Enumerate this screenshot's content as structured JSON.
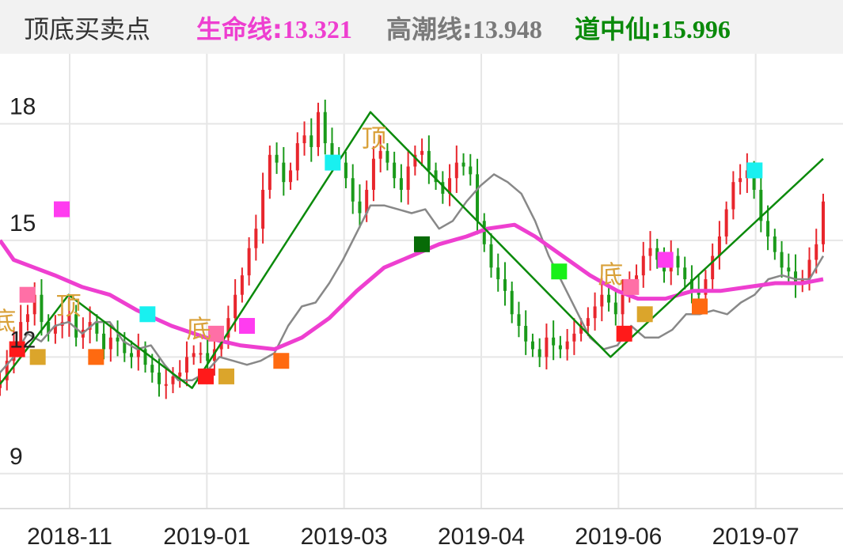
{
  "header": {
    "title": "顶底买卖点",
    "indicators": [
      {
        "label": "生命线:",
        "value": "13.321",
        "color": "#ee3fd0"
      },
      {
        "label": "高潮线:",
        "value": "13.948",
        "color": "#7a7a7a"
      },
      {
        "label": "道中仙:",
        "value": "15.996",
        "color": "#0b8a0b"
      }
    ]
  },
  "chart_data": {
    "type": "candlestick",
    "y_range": [
      8.1,
      19.8
    ],
    "y_ticks": [
      {
        "value": 18,
        "label": "18"
      },
      {
        "value": 15,
        "label": "15"
      },
      {
        "value": 12,
        "label": "12"
      },
      {
        "value": 9,
        "label": "9"
      }
    ],
    "x_range": [
      0,
      120
    ],
    "x_ticks": [
      {
        "x": 10,
        "label": "2018-11"
      },
      {
        "x": 30,
        "label": "2019-01"
      },
      {
        "x": 50,
        "label": "2019-03"
      },
      {
        "x": 70,
        "label": "2019-04"
      },
      {
        "x": 90,
        "label": "2019-06"
      },
      {
        "x": 110,
        "label": "2019-07"
      }
    ],
    "colors": {
      "up": "#e8262d",
      "down": "#1a9a1a",
      "life_line": "#ee3fd0",
      "climax_line": "#888888",
      "zigzag": "#0b8a0b",
      "grid": "#e6e6e6"
    },
    "life_line": [
      [
        0,
        15.0
      ],
      [
        2,
        14.5
      ],
      [
        5,
        14.3
      ],
      [
        8,
        14.1
      ],
      [
        12,
        13.8
      ],
      [
        16,
        13.6
      ],
      [
        20,
        13.2
      ],
      [
        25,
        12.8
      ],
      [
        30,
        12.5
      ],
      [
        35,
        12.3
      ],
      [
        40,
        12.2
      ],
      [
        44,
        12.5
      ],
      [
        48,
        13.0
      ],
      [
        52,
        13.7
      ],
      [
        56,
        14.3
      ],
      [
        60,
        14.6
      ],
      [
        64,
        14.9
      ],
      [
        68,
        15.1
      ],
      [
        71,
        15.3
      ],
      [
        75,
        15.4
      ],
      [
        78,
        15.1
      ],
      [
        82,
        14.6
      ],
      [
        86,
        14.1
      ],
      [
        90,
        13.7
      ],
      [
        93,
        13.5
      ],
      [
        97,
        13.5
      ],
      [
        101,
        13.7
      ],
      [
        105,
        13.7
      ],
      [
        109,
        13.8
      ],
      [
        113,
        13.9
      ],
      [
        117,
        13.9
      ],
      [
        120,
        14.0
      ]
    ],
    "climax_line": [
      [
        0,
        11.6
      ],
      [
        2,
        12.0
      ],
      [
        4,
        12.6
      ],
      [
        6,
        12.4
      ],
      [
        8,
        12.8
      ],
      [
        10,
        12.9
      ],
      [
        12,
        12.6
      ],
      [
        14,
        12.9
      ],
      [
        16,
        12.9
      ],
      [
        18,
        12.4
      ],
      [
        20,
        12.2
      ],
      [
        22,
        12.3
      ],
      [
        24,
        11.8
      ],
      [
        26,
        11.4
      ],
      [
        28,
        11.4
      ],
      [
        30,
        11.6
      ],
      [
        32,
        12.0
      ],
      [
        34,
        11.9
      ],
      [
        36,
        11.8
      ],
      [
        38,
        11.9
      ],
      [
        40,
        12.1
      ],
      [
        42,
        12.8
      ],
      [
        44,
        13.3
      ],
      [
        46,
        13.4
      ],
      [
        48,
        13.9
      ],
      [
        50,
        14.5
      ],
      [
        52,
        15.2
      ],
      [
        54,
        15.9
      ],
      [
        56,
        15.9
      ],
      [
        58,
        15.8
      ],
      [
        60,
        15.7
      ],
      [
        62,
        15.8
      ],
      [
        64,
        15.3
      ],
      [
        66,
        15.5
      ],
      [
        68,
        16.0
      ],
      [
        70,
        16.4
      ],
      [
        72,
        16.7
      ],
      [
        74,
        16.5
      ],
      [
        76,
        16.2
      ],
      [
        78,
        15.5
      ],
      [
        80,
        14.6
      ],
      [
        82,
        13.9
      ],
      [
        84,
        13.2
      ],
      [
        86,
        12.5
      ],
      [
        88,
        12.2
      ],
      [
        90,
        12.3
      ],
      [
        92,
        12.8
      ],
      [
        94,
        12.5
      ],
      [
        96,
        12.5
      ],
      [
        98,
        12.7
      ],
      [
        100,
        13.1
      ],
      [
        102,
        13.1
      ],
      [
        104,
        13.2
      ],
      [
        106,
        13.1
      ],
      [
        108,
        13.4
      ],
      [
        110,
        13.6
      ],
      [
        112,
        14.0
      ],
      [
        114,
        14.1
      ],
      [
        116,
        14.0
      ],
      [
        118,
        14.0
      ],
      [
        120,
        14.6
      ]
    ],
    "zigzag": [
      [
        0,
        11.3
      ],
      [
        10,
        13.6
      ],
      [
        28,
        11.2
      ],
      [
        54,
        18.3
      ],
      [
        89,
        12.0
      ],
      [
        120,
        17.1
      ]
    ],
    "candles": {
      "dates_range": [
        0,
        120
      ],
      "closes": [
        11.4,
        11.9,
        12.4,
        12.9,
        13.1,
        13.6,
        12.9,
        12.6,
        12.8,
        12.9,
        13.1,
        12.5,
        12.7,
        12.9,
        12.6,
        12.2,
        12.5,
        12.4,
        12.1,
        12.0,
        12.2,
        11.8,
        11.6,
        11.3,
        11.3,
        11.5,
        11.6,
        12.0,
        12.1,
        12.1,
        11.9,
        12.2,
        12.5,
        13.0,
        13.6,
        14.1,
        14.8,
        15.3,
        16.3,
        17.2,
        17.0,
        16.5,
        16.8,
        17.5,
        17.7,
        17.4,
        18.3,
        17.5,
        17.2,
        17.0,
        16.6,
        16.0,
        15.7,
        16.3,
        17.1,
        17.3,
        17.0,
        16.6,
        16.3,
        16.9,
        17.2,
        17.3,
        16.8,
        16.5,
        16.2,
        16.6,
        17.0,
        16.9,
        16.7,
        15.5,
        14.9,
        14.3,
        14.0,
        13.7,
        13.1,
        12.8,
        12.4,
        12.2,
        12.0,
        12.5,
        12.3,
        12.2,
        12.4,
        12.6,
        12.8,
        13.0,
        13.3,
        13.6,
        13.4,
        13.1,
        13.6,
        14.0,
        14.1,
        14.6,
        14.8,
        14.5,
        14.2,
        14.6,
        14.3,
        14.0,
        13.7,
        13.6,
        14.0,
        14.6,
        15.1,
        15.8,
        16.5,
        16.6,
        16.8,
        16.3,
        15.5,
        15.1,
        14.7,
        14.3,
        14.2,
        13.9,
        14.0,
        14.5,
        14.9,
        16.0
      ]
    },
    "signals": [
      {
        "x": 2.5,
        "y": 12.2,
        "color": "#ff1a1a"
      },
      {
        "x": 5.5,
        "y": 12.0,
        "color": "#dba52b"
      },
      {
        "x": 9,
        "y": 15.8,
        "color": "#ff3cf0"
      },
      {
        "x": 4,
        "y": 13.6,
        "color": "#ff6fa6"
      },
      {
        "x": 14,
        "y": 12.0,
        "color": "#ff6a10"
      },
      {
        "x": 21.5,
        "y": 13.1,
        "color": "#19f0f0"
      },
      {
        "x": 30,
        "y": 11.5,
        "color": "#ff1a1a"
      },
      {
        "x": 33,
        "y": 11.5,
        "color": "#dba52b"
      },
      {
        "x": 31.5,
        "y": 12.6,
        "color": "#ff6fa6"
      },
      {
        "x": 36,
        "y": 12.8,
        "color": "#ff3cf0"
      },
      {
        "x": 41,
        "y": 11.9,
        "color": "#ff6a10"
      },
      {
        "x": 48.5,
        "y": 17.0,
        "color": "#19f0f0"
      },
      {
        "x": 61.5,
        "y": 14.9,
        "color": "#076b07"
      },
      {
        "x": 81.5,
        "y": 14.2,
        "color": "#19f019"
      },
      {
        "x": 91,
        "y": 12.6,
        "color": "#ff1a1a"
      },
      {
        "x": 92,
        "y": 13.8,
        "color": "#ff6fa6"
      },
      {
        "x": 94,
        "y": 13.1,
        "color": "#dba52b"
      },
      {
        "x": 97,
        "y": 14.5,
        "color": "#ff3cf0"
      },
      {
        "x": 102,
        "y": 13.3,
        "color": "#ff6a10"
      },
      {
        "x": 110,
        "y": 16.8,
        "color": "#19f0f0"
      }
    ],
    "labels": [
      {
        "x": 0.5,
        "y": 12.7,
        "text": "底"
      },
      {
        "x": 10,
        "y": 13.1,
        "text": "顶"
      },
      {
        "x": 29,
        "y": 12.5,
        "text": "底"
      },
      {
        "x": 54.5,
        "y": 17.4,
        "text": "顶"
      },
      {
        "x": 89,
        "y": 13.9,
        "text": "底"
      }
    ]
  }
}
